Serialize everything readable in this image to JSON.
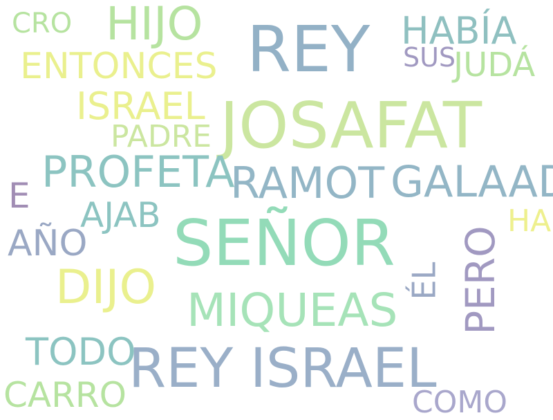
{
  "words": [
    {
      "text": "CRO",
      "color": "#b6e3a0"
    },
    {
      "text": "HIJO",
      "color": "#b6e3a0"
    },
    {
      "text": "REY",
      "color": "#93b1c6"
    },
    {
      "text": "HABÍA",
      "color": "#8fc0c0"
    },
    {
      "text": "ENTONCES",
      "color": "#eaf08e"
    },
    {
      "text": "SUS",
      "color": "#a199c1"
    },
    {
      "text": "JUDÁ",
      "color": "#b6e3a0"
    },
    {
      "text": "ISRAEL",
      "color": "#eaf08e"
    },
    {
      "text": "JOSAFAT",
      "color": "#cbe6a0"
    },
    {
      "text": "PADRE",
      "color": "#cbe6a0"
    },
    {
      "text": "PROFETA",
      "color": "#8cc4c1"
    },
    {
      "text": "RAMOT",
      "color": "#93b6c6"
    },
    {
      "text": "GALAAD",
      "color": "#93b6c6"
    },
    {
      "text": "E",
      "color": "#a18db4"
    },
    {
      "text": "AJAB",
      "color": "#8cc4c1"
    },
    {
      "text": "SEÑOR",
      "color": "#93dbb8"
    },
    {
      "text": "HA",
      "color": "#eef08e"
    },
    {
      "text": "AÑO",
      "color": "#9aa8c4"
    },
    {
      "text": "ÉL",
      "color": "#9aa8c4"
    },
    {
      "text": "PERO",
      "color": "#a199c1"
    },
    {
      "text": "DIJO",
      "color": "#eaf08e"
    },
    {
      "text": "MIQUEAS",
      "color": "#a6e3b8"
    },
    {
      "text": "TODO",
      "color": "#8cc4c1"
    },
    {
      "text": "REY ISRAEL",
      "color": "#9aafc8"
    },
    {
      "text": "CARRO",
      "color": "#b6e3a0"
    },
    {
      "text": "COMO",
      "color": "#a9a7cc"
    }
  ]
}
